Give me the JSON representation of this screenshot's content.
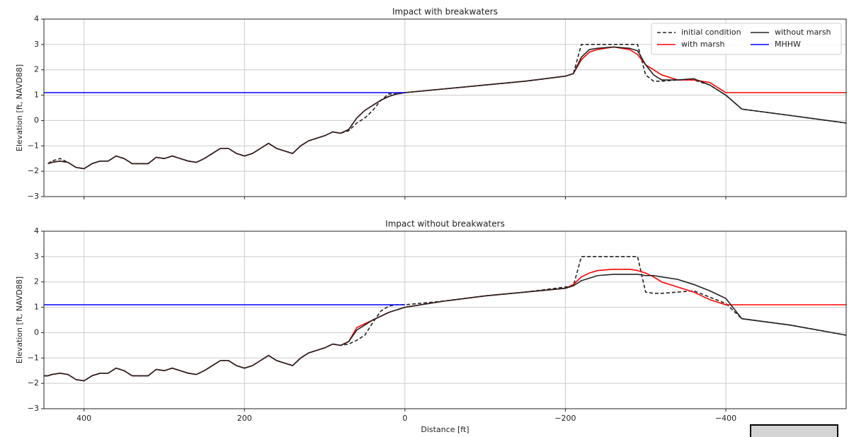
{
  "chart_data": [
    {
      "type": "line",
      "title": "Impact with breakwaters",
      "ylabel": "Elevation [ft, NAVD88]",
      "x": [
        450,
        445,
        440,
        430,
        420,
        410,
        400,
        390,
        380,
        370,
        360,
        350,
        340,
        330,
        320,
        310,
        300,
        290,
        280,
        270,
        260,
        250,
        240,
        230,
        220,
        210,
        200,
        190,
        180,
        170,
        160,
        150,
        140,
        130,
        120,
        110,
        100,
        90,
        80,
        70,
        60,
        50,
        40,
        30,
        20,
        10,
        0,
        -50,
        -100,
        -150,
        -200,
        -210,
        -220,
        -230,
        -240,
        -260,
        -280,
        -290,
        -300,
        -310,
        -320,
        -340,
        -360,
        -380,
        -400,
        -420,
        -480,
        -550
      ],
      "series": [
        {
          "name": "initial condition",
          "color": "#222222",
          "linestyle": "dashed",
          "values": [
            null,
            -1.7,
            -1.6,
            -1.5,
            -1.65,
            -1.85,
            -1.9,
            -1.7,
            -1.6,
            -1.6,
            -1.4,
            -1.5,
            -1.7,
            -1.7,
            -1.7,
            -1.45,
            -1.5,
            -1.4,
            -1.5,
            -1.6,
            -1.65,
            -1.5,
            -1.3,
            -1.1,
            -1.1,
            -1.3,
            -1.4,
            -1.3,
            -1.1,
            -0.9,
            -1.1,
            -1.2,
            -1.3,
            -1.0,
            -0.8,
            -0.7,
            -0.6,
            -0.45,
            -0.5,
            -0.4,
            -0.1,
            0.1,
            0.4,
            0.8,
            1.05,
            1.05,
            1.1,
            1.25,
            1.4,
            1.55,
            1.75,
            1.85,
            3.0,
            3.0,
            3.0,
            3.0,
            3.0,
            3.0,
            1.8,
            1.55,
            1.55,
            1.6,
            1.6,
            1.4,
            1.0,
            0.45,
            0.2,
            -0.1
          ]
        },
        {
          "name": "with marsh",
          "color": "#ff0000",
          "linestyle": "solid",
          "values": [
            null,
            -1.7,
            -1.65,
            -1.6,
            -1.65,
            -1.85,
            -1.9,
            -1.7,
            -1.6,
            -1.6,
            -1.4,
            -1.5,
            -1.7,
            -1.7,
            -1.7,
            -1.45,
            -1.5,
            -1.4,
            -1.5,
            -1.6,
            -1.65,
            -1.5,
            -1.3,
            -1.1,
            -1.1,
            -1.3,
            -1.4,
            -1.3,
            -1.1,
            -0.9,
            -1.1,
            -1.2,
            -1.3,
            -1.0,
            -0.8,
            -0.7,
            -0.6,
            -0.45,
            -0.5,
            -0.35,
            0.1,
            0.4,
            0.6,
            0.8,
            0.95,
            1.05,
            1.1,
            1.25,
            1.4,
            1.55,
            1.75,
            1.85,
            2.4,
            2.7,
            2.8,
            2.9,
            2.8,
            2.6,
            2.2,
            2.0,
            1.8,
            1.6,
            1.6,
            1.5,
            1.1,
            1.1,
            1.1,
            1.1
          ]
        },
        {
          "name": "without marsh",
          "color": "#222222",
          "linestyle": "solid",
          "values": [
            null,
            -1.7,
            -1.65,
            -1.6,
            -1.65,
            -1.85,
            -1.9,
            -1.7,
            -1.6,
            -1.6,
            -1.4,
            -1.5,
            -1.7,
            -1.7,
            -1.7,
            -1.45,
            -1.5,
            -1.4,
            -1.5,
            -1.6,
            -1.65,
            -1.5,
            -1.3,
            -1.1,
            -1.1,
            -1.3,
            -1.4,
            -1.3,
            -1.1,
            -0.9,
            -1.1,
            -1.2,
            -1.3,
            -1.0,
            -0.8,
            -0.7,
            -0.6,
            -0.45,
            -0.5,
            -0.35,
            0.1,
            0.4,
            0.6,
            0.8,
            0.95,
            1.05,
            1.1,
            1.25,
            1.4,
            1.55,
            1.75,
            1.85,
            2.5,
            2.8,
            2.85,
            2.9,
            2.85,
            2.75,
            2.2,
            1.8,
            1.6,
            1.6,
            1.65,
            1.4,
            1.0,
            0.45,
            0.2,
            -0.1
          ]
        },
        {
          "name": "MHHW",
          "color": "#0000ff",
          "linestyle": "solid",
          "values": [
            1.1,
            1.1,
            1.1,
            1.1,
            1.1,
            1.1,
            1.1,
            1.1,
            1.1,
            1.1,
            1.1,
            1.1,
            1.1,
            1.1,
            1.1,
            1.1,
            1.1,
            1.1,
            1.1,
            1.1,
            1.1,
            1.1,
            1.1,
            1.1,
            1.1,
            1.1,
            1.1,
            1.1,
            1.1,
            1.1,
            1.1,
            1.1,
            1.1,
            1.1,
            1.1,
            1.1,
            1.1,
            1.1,
            1.1,
            1.1,
            1.1,
            1.1,
            1.1,
            1.1,
            1.1,
            1.1,
            1.1,
            null,
            null,
            null,
            null,
            null,
            null,
            null,
            null,
            null,
            null,
            null,
            null,
            null,
            null,
            null,
            null,
            null,
            null,
            null,
            null,
            null
          ]
        }
      ],
      "xlim": [
        450,
        -550
      ],
      "xticks": [
        400,
        200,
        0,
        -200,
        -400
      ],
      "show_xticklabels": false,
      "ylim": [
        -3,
        4
      ],
      "yticks": [
        {
          "value": -3,
          "label": "−3"
        },
        {
          "value": -2,
          "label": "−2"
        },
        {
          "value": -1,
          "label": "−1"
        },
        0,
        1,
        2,
        3,
        4
      ],
      "grid": true,
      "legend": "upper right"
    },
    {
      "type": "line",
      "title": "Impact without breakwaters",
      "ylabel": "Elevation [ft, NAVD88]",
      "xlabel": "Distance [ft]",
      "x": [
        450,
        445,
        440,
        430,
        420,
        410,
        400,
        390,
        380,
        370,
        360,
        350,
        340,
        330,
        320,
        310,
        300,
        290,
        280,
        270,
        260,
        250,
        240,
        230,
        220,
        210,
        200,
        190,
        180,
        170,
        160,
        150,
        140,
        130,
        120,
        110,
        100,
        90,
        80,
        70,
        60,
        50,
        40,
        30,
        20,
        10,
        0,
        -50,
        -100,
        -150,
        -200,
        -210,
        -220,
        -230,
        -240,
        -260,
        -280,
        -290,
        -300,
        -310,
        -320,
        -340,
        -360,
        -380,
        -400,
        -420,
        -480,
        -550
      ],
      "series": [
        {
          "name": "initial condition",
          "color": "#222222",
          "linestyle": "dashed",
          "values": [
            -1.7,
            -1.7,
            -1.65,
            -1.6,
            -1.65,
            -1.85,
            -1.9,
            -1.7,
            -1.6,
            -1.6,
            -1.4,
            -1.5,
            -1.7,
            -1.7,
            -1.7,
            -1.45,
            -1.5,
            -1.4,
            -1.5,
            -1.6,
            -1.65,
            -1.5,
            -1.3,
            -1.1,
            -1.1,
            -1.3,
            -1.4,
            -1.3,
            -1.1,
            -0.9,
            -1.1,
            -1.2,
            -1.3,
            -1.0,
            -0.8,
            -0.7,
            -0.6,
            -0.45,
            -0.5,
            -0.45,
            -0.3,
            -0.1,
            0.4,
            0.85,
            1.05,
            1.1,
            1.1,
            1.25,
            1.45,
            1.6,
            1.8,
            1.85,
            3.0,
            3.0,
            3.0,
            3.0,
            3.0,
            3.0,
            1.6,
            1.55,
            1.55,
            1.6,
            1.65,
            1.4,
            1.15,
            0.55,
            0.3,
            -0.1
          ]
        },
        {
          "name": "with marsh",
          "color": "#ff0000",
          "linestyle": "solid",
          "values": [
            -1.7,
            -1.7,
            -1.65,
            -1.6,
            -1.65,
            -1.85,
            -1.9,
            -1.7,
            -1.6,
            -1.6,
            -1.4,
            -1.5,
            -1.7,
            -1.7,
            -1.7,
            -1.45,
            -1.5,
            -1.4,
            -1.5,
            -1.6,
            -1.65,
            -1.5,
            -1.3,
            -1.1,
            -1.1,
            -1.3,
            -1.4,
            -1.3,
            -1.1,
            -0.9,
            -1.1,
            -1.2,
            -1.3,
            -1.0,
            -0.8,
            -0.7,
            -0.6,
            -0.45,
            -0.5,
            -0.35,
            0.2,
            0.35,
            0.5,
            0.65,
            0.8,
            0.9,
            1.0,
            1.25,
            1.45,
            1.6,
            1.75,
            1.9,
            2.2,
            2.35,
            2.45,
            2.5,
            2.5,
            2.45,
            2.35,
            2.2,
            2.0,
            1.8,
            1.6,
            1.3,
            1.1,
            1.1,
            1.1,
            1.1
          ]
        },
        {
          "name": "without marsh",
          "color": "#222222",
          "linestyle": "solid",
          "values": [
            -1.7,
            -1.7,
            -1.65,
            -1.6,
            -1.65,
            -1.85,
            -1.9,
            -1.7,
            -1.6,
            -1.6,
            -1.4,
            -1.5,
            -1.7,
            -1.7,
            -1.7,
            -1.45,
            -1.5,
            -1.4,
            -1.5,
            -1.6,
            -1.65,
            -1.5,
            -1.3,
            -1.1,
            -1.1,
            -1.3,
            -1.4,
            -1.3,
            -1.1,
            -0.9,
            -1.1,
            -1.2,
            -1.3,
            -1.0,
            -0.8,
            -0.7,
            -0.6,
            -0.45,
            -0.5,
            -0.35,
            0.1,
            0.3,
            0.5,
            0.65,
            0.8,
            0.9,
            1.0,
            1.25,
            1.45,
            1.6,
            1.75,
            1.85,
            2.05,
            2.15,
            2.25,
            2.3,
            2.3,
            2.3,
            2.25,
            2.25,
            2.2,
            2.1,
            1.9,
            1.65,
            1.35,
            0.55,
            0.3,
            -0.1
          ]
        },
        {
          "name": "MHHW",
          "color": "#0000ff",
          "linestyle": "solid",
          "values": [
            1.1,
            1.1,
            1.1,
            1.1,
            1.1,
            1.1,
            1.1,
            1.1,
            1.1,
            1.1,
            1.1,
            1.1,
            1.1,
            1.1,
            1.1,
            1.1,
            1.1,
            1.1,
            1.1,
            1.1,
            1.1,
            1.1,
            1.1,
            1.1,
            1.1,
            1.1,
            1.1,
            1.1,
            1.1,
            1.1,
            1.1,
            1.1,
            1.1,
            1.1,
            1.1,
            1.1,
            1.1,
            1.1,
            1.1,
            1.1,
            1.1,
            1.1,
            1.1,
            1.1,
            1.1,
            1.1,
            1.1,
            null,
            null,
            null,
            null,
            null,
            null,
            null,
            null,
            null,
            null,
            null,
            null,
            null,
            null,
            null,
            null,
            null,
            null,
            null,
            null,
            null
          ]
        }
      ],
      "xlim": [
        450,
        -550
      ],
      "xticks": [
        400,
        200,
        0,
        {
          "value": -200,
          "label": "−200"
        },
        {
          "value": -400,
          "label": "−400"
        }
      ],
      "show_xticklabels": true,
      "ylim": [
        -3,
        4
      ],
      "yticks": [
        {
          "value": -3,
          "label": "−3"
        },
        {
          "value": -2,
          "label": "−2"
        },
        {
          "value": -1,
          "label": "−1"
        },
        0,
        1,
        2,
        3,
        4
      ],
      "grid": true
    }
  ]
}
